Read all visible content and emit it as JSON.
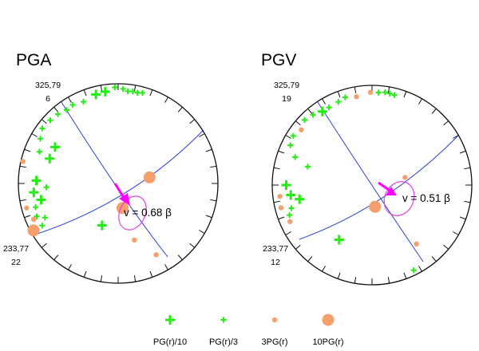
{
  "colors": {
    "frame": "#111111",
    "plane": "#2b3fd6",
    "arrow": "#ff00ff",
    "ellipse": "#e040e0",
    "green_marker": "#22ee11",
    "orange_marker": "#f5a06c"
  },
  "panels": [
    {
      "title": "PGA",
      "top_label": "325,79",
      "top_count": "6",
      "bottom_label": "233,77",
      "bottom_count": "22",
      "velocity_label": "v = 0.68 β",
      "markers": [
        {
          "az": 12,
          "dist": 0.93,
          "kind": "PG(r)/3"
        },
        {
          "az": 15,
          "dist": 0.94,
          "kind": "PG(r)/3"
        },
        {
          "az": 9,
          "dist": 0.935,
          "kind": "PG(r)/3"
        },
        {
          "az": 6,
          "dist": 0.93,
          "kind": "PG(r)/3"
        },
        {
          "az": 3,
          "dist": 0.95,
          "kind": "PG(r)/3"
        },
        {
          "az": 358,
          "dist": 0.965,
          "kind": "PG(r)/3"
        },
        {
          "az": 352,
          "dist": 0.93,
          "kind": "PG(r)/10"
        },
        {
          "az": 346,
          "dist": 0.92,
          "kind": "PG(r)/10"
        },
        {
          "az": 337,
          "dist": 0.89,
          "kind": "PG(r)/3"
        },
        {
          "az": 330,
          "dist": 0.91,
          "kind": "PG(r)/3"
        },
        {
          "az": 325,
          "dist": 0.9,
          "kind": "PG(r)/3"
        },
        {
          "az": 319,
          "dist": 0.92,
          "kind": "PG(r)/3"
        },
        {
          "az": 313,
          "dist": 0.93,
          "kind": "PG(r)/3"
        },
        {
          "az": 306,
          "dist": 0.94,
          "kind": "PG(r)/3"
        },
        {
          "az": 300,
          "dist": 0.9,
          "kind": "PG(r)/3"
        },
        {
          "az": 292,
          "dist": 0.85,
          "kind": "PG(r)/3"
        },
        {
          "az": 300,
          "dist": 0.73,
          "kind": "PG(r)/10"
        },
        {
          "az": 290,
          "dist": 0.73,
          "kind": "PG(r)/10"
        },
        {
          "az": 272,
          "dist": 0.82,
          "kind": "PG(r)/10"
        },
        {
          "az": 264,
          "dist": 0.85,
          "kind": "PG(r)/10"
        },
        {
          "az": 258,
          "dist": 0.79,
          "kind": "PG(r)/10"
        },
        {
          "az": 254,
          "dist": 0.86,
          "kind": "PG(r)/3"
        },
        {
          "az": 248,
          "dist": 0.88,
          "kind": "PG(r)/3"
        },
        {
          "az": 245,
          "dist": 0.81,
          "kind": "PG(r)/3"
        },
        {
          "az": 241,
          "dist": 0.87,
          "kind": "PG(r)/3"
        },
        {
          "az": 267,
          "dist": 0.72,
          "kind": "PG(r)/3"
        },
        {
          "az": 201,
          "dist": 0.45,
          "kind": "PG(r)/10"
        },
        {
          "az": 283,
          "dist": 0.98,
          "kind": "3PG(r)"
        },
        {
          "az": 255,
          "dist": 0.95,
          "kind": "3PG(r)"
        },
        {
          "az": 247,
          "dist": 0.92,
          "kind": "3PG(r)"
        },
        {
          "az": 241,
          "dist": 0.97,
          "kind": "10PG(r)"
        },
        {
          "az": 170,
          "dist": 0.25,
          "kind": "10PG(r)"
        },
        {
          "az": 79,
          "dist": 0.32,
          "kind": "10PG(r)"
        },
        {
          "az": 164,
          "dist": 0.59,
          "kind": "3PG(r)"
        },
        {
          "az": 152,
          "dist": 0.81,
          "kind": "3PG(r)"
        }
      ]
    },
    {
      "title": "PGV",
      "top_label": "325,79",
      "top_count": "19",
      "bottom_label": "233,77",
      "bottom_count": "12",
      "velocity_label": "v = 0.51 β",
      "markers": [
        {
          "az": 14,
          "dist": 0.93,
          "kind": "PG(r)/3"
        },
        {
          "az": 11,
          "dist": 0.935,
          "kind": "PG(r)/3"
        },
        {
          "az": 8,
          "dist": 0.94,
          "kind": "PG(r)/3"
        },
        {
          "az": 4,
          "dist": 0.93,
          "kind": "PG(r)/3"
        },
        {
          "az": 359,
          "dist": 0.93,
          "kind": "3PG(r)"
        },
        {
          "az": 350,
          "dist": 0.9,
          "kind": "3PG(r)"
        },
        {
          "az": 343,
          "dist": 0.92,
          "kind": "PG(r)/3"
        },
        {
          "az": 338,
          "dist": 0.9,
          "kind": "PG(r)/3"
        },
        {
          "az": 331,
          "dist": 0.89,
          "kind": "PG(r)/3"
        },
        {
          "az": 326,
          "dist": 0.89,
          "kind": "PG(r)/10"
        },
        {
          "az": 320,
          "dist": 0.92,
          "kind": "PG(r)/3"
        },
        {
          "az": 314,
          "dist": 0.94,
          "kind": "PG(r)/3"
        },
        {
          "az": 308,
          "dist": 0.9,
          "kind": "3PG(r)"
        },
        {
          "az": 302,
          "dist": 0.93,
          "kind": "PG(r)/3"
        },
        {
          "az": 296,
          "dist": 0.91,
          "kind": "PG(r)/3"
        },
        {
          "az": 290,
          "dist": 0.82,
          "kind": "PG(r)/3"
        },
        {
          "az": 286,
          "dist": 0.67,
          "kind": "PG(r)/3"
        },
        {
          "az": 270,
          "dist": 0.86,
          "kind": "PG(r)/10"
        },
        {
          "az": 263,
          "dist": 0.82,
          "kind": "PG(r)/10"
        },
        {
          "az": 259,
          "dist": 0.74,
          "kind": "PG(r)/10"
        },
        {
          "az": 254,
          "dist": 0.84,
          "kind": "PG(r)/3"
        },
        {
          "az": 250,
          "dist": 0.88,
          "kind": "PG(r)/3"
        },
        {
          "az": 246,
          "dist": 0.9,
          "kind": "3PG(r)"
        },
        {
          "az": 256,
          "dist": 0.94,
          "kind": "3PG(r)"
        },
        {
          "az": 263,
          "dist": 0.93,
          "kind": "3PG(r)"
        },
        {
          "az": 211,
          "dist": 0.64,
          "kind": "PG(r)/10"
        },
        {
          "az": 172,
          "dist": 0.22,
          "kind": "10PG(r)"
        },
        {
          "az": 77,
          "dist": 0.34,
          "kind": "3PG(r)"
        },
        {
          "az": 143,
          "dist": 0.74,
          "kind": "3PG(r)"
        },
        {
          "az": 154,
          "dist": 0.95,
          "kind": "PG(r)/3"
        }
      ]
    }
  ],
  "legend": [
    {
      "label": "PG(r)/10",
      "kind": "PG(r)/10"
    },
    {
      "label": "PG(r)/3",
      "kind": "PG(r)/3"
    },
    {
      "label": "3PG(r)",
      "kind": "3PG(r)"
    },
    {
      "label": "10PG(r)",
      "kind": "10PG(r)"
    }
  ]
}
